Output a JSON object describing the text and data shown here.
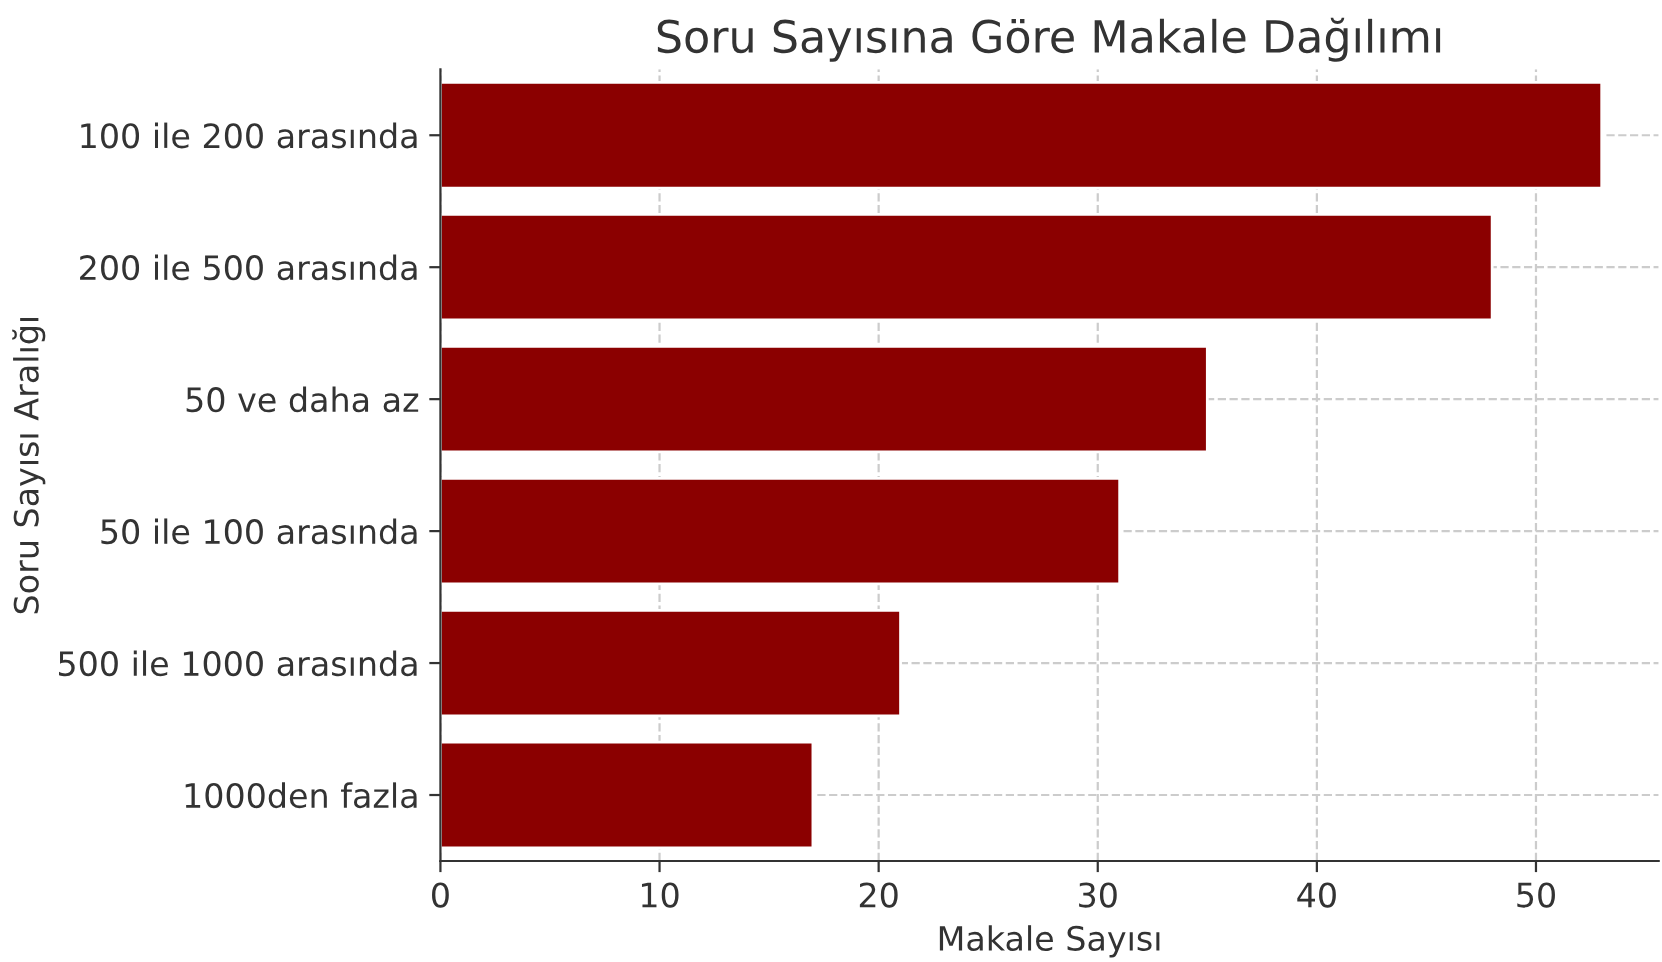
{
  "chart_data": {
    "type": "bar",
    "orientation": "horizontal",
    "title": "Soru Sayısına Göre Makale Dağılımı",
    "xlabel": "Makale Sayısı",
    "ylabel": "Soru Sayısı Aralığı",
    "categories": [
      "100 ile 200 arasında",
      "200 ile 500 arasında",
      "50 ve daha az",
      "50 ile 100 arasında",
      "500 ile 1000 arasında",
      "1000den fazla"
    ],
    "values": [
      53,
      48,
      35,
      31,
      21,
      17
    ],
    "color": "#8b0000",
    "xlim": [
      0,
      55.6
    ],
    "xticks": [
      0,
      10,
      20,
      30,
      40,
      50
    ],
    "grid": true,
    "line_style": "dashed"
  }
}
